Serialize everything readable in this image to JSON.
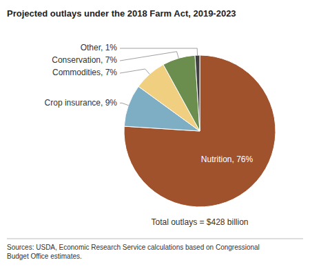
{
  "chart_data": {
    "type": "pie",
    "title": "Projected outlays under the 2018 Farm Act, 2019-2023",
    "values": [
      76,
      9,
      7,
      7,
      1
    ],
    "value_labels": [
      "Nutrition, 76%",
      "Crop insurance, 9%",
      "Commodities, 7%",
      "Conservation, 7%",
      "Other, 1%"
    ],
    "colors": [
      "#a0522d",
      "#7eaec4",
      "#f0d080",
      "#6b8e4e",
      "#404040"
    ],
    "annotations": [
      "Total outlays = $428 billion",
      "Sources: USDA, Economic Research Service calculations based on Congressional\nBudget Office estimates."
    ]
  }
}
